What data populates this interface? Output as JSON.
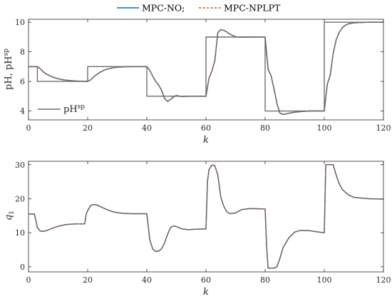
{
  "legend_top": {
    "entries": [
      {
        "label": "MPC-NO;",
        "color": "#0072BD",
        "style": "solid"
      },
      {
        "label": "MPC-NPLPT",
        "color": "#D95319",
        "style": "dashed"
      }
    ]
  },
  "chart_data": [
    {
      "type": "line",
      "xlabel": "k",
      "ylabel": "pH, pH",
      "ylabel_sup": "sp",
      "xlim": [
        0,
        120
      ],
      "ylim": [
        3.4,
        10.2
      ],
      "xticks": [
        0,
        20,
        40,
        60,
        80,
        100,
        120
      ],
      "yticks": [
        4,
        6,
        8,
        10
      ],
      "legend": {
        "label": "pH",
        "label_sup": "sp",
        "placement": "bottom-left"
      },
      "setpoint": {
        "name": "pH",
        "color": "#6e6e6e",
        "x": [
          0,
          3,
          3,
          20,
          20,
          40,
          40,
          60,
          60,
          80,
          80,
          100,
          100,
          120
        ],
        "y": [
          7,
          7,
          6,
          6,
          7,
          7,
          5,
          5,
          9,
          9,
          4,
          4,
          10,
          10
        ]
      },
      "series": [
        {
          "name": "MPC-NO",
          "x": [
            0,
            1,
            2,
            3,
            4,
            5,
            6,
            7,
            8,
            10,
            12,
            14,
            16,
            18,
            20,
            21,
            22,
            23,
            24,
            26,
            28,
            30,
            32,
            35,
            40,
            41,
            42,
            43,
            44,
            45,
            46,
            47,
            48,
            49,
            50,
            51,
            52,
            54,
            56,
            58,
            60,
            61,
            62,
            63,
            64,
            65,
            66,
            67,
            68,
            70,
            72,
            75,
            80,
            81,
            82,
            83,
            84,
            85,
            86,
            87,
            88,
            90,
            92,
            95,
            100,
            101,
            102,
            103,
            104,
            105,
            106,
            107,
            108,
            110,
            115,
            120
          ],
          "y": [
            7,
            7,
            7,
            7.0,
            6.85,
            6.65,
            6.5,
            6.4,
            6.3,
            6.18,
            6.1,
            6.06,
            6.03,
            6.01,
            6.0,
            6.1,
            6.3,
            6.45,
            6.6,
            6.8,
            6.9,
            6.96,
            6.98,
            7.0,
            7.0,
            6.75,
            6.35,
            6.0,
            5.75,
            5.4,
            4.85,
            4.65,
            4.78,
            4.95,
            5.05,
            5.0,
            4.98,
            5.0,
            5.0,
            5.0,
            5.0,
            6.2,
            6.7,
            7.4,
            9.3,
            9.5,
            9.45,
            9.35,
            9.2,
            9.02,
            8.98,
            9.0,
            9.0,
            6.8,
            6.4,
            5.5,
            4.5,
            3.85,
            3.78,
            3.8,
            3.85,
            3.92,
            3.96,
            4.0,
            4.0,
            5.8,
            6.4,
            7.9,
            8.8,
            9.3,
            9.6,
            9.78,
            9.88,
            9.96,
            10.0,
            10.0
          ]
        },
        {
          "name": "MPC-NPLPT",
          "x": [
            0,
            1,
            2,
            3,
            4,
            5,
            6,
            7,
            8,
            10,
            12,
            14,
            16,
            18,
            20,
            21,
            22,
            23,
            24,
            26,
            28,
            30,
            32,
            35,
            40,
            41,
            42,
            43,
            44,
            45,
            46,
            47,
            48,
            49,
            50,
            51,
            52,
            54,
            56,
            58,
            60,
            61,
            62,
            63,
            64,
            65,
            66,
            67,
            68,
            70,
            72,
            75,
            80,
            81,
            82,
            83,
            84,
            85,
            86,
            87,
            88,
            90,
            92,
            95,
            100,
            101,
            102,
            103,
            104,
            105,
            106,
            107,
            108,
            110,
            115,
            120
          ],
          "y": [
            7,
            7,
            7,
            7.0,
            6.85,
            6.65,
            6.5,
            6.4,
            6.3,
            6.18,
            6.1,
            6.06,
            6.03,
            6.01,
            6.0,
            6.1,
            6.3,
            6.45,
            6.6,
            6.8,
            6.9,
            6.96,
            6.98,
            7.0,
            7.0,
            6.75,
            6.35,
            6.0,
            5.75,
            5.4,
            4.85,
            4.65,
            4.78,
            4.95,
            5.05,
            5.0,
            4.98,
            5.0,
            5.0,
            5.0,
            5.0,
            6.2,
            6.7,
            7.4,
            9.3,
            9.5,
            9.45,
            9.35,
            9.2,
            9.02,
            8.98,
            9.0,
            9.0,
            6.8,
            6.4,
            5.5,
            4.5,
            3.85,
            3.78,
            3.8,
            3.85,
            3.92,
            3.96,
            4.0,
            4.0,
            5.8,
            6.4,
            7.9,
            8.8,
            9.3,
            9.6,
            9.78,
            9.88,
            9.96,
            10.0,
            10.0
          ]
        }
      ]
    },
    {
      "type": "line",
      "xlabel": "k",
      "ylabel": "q",
      "ylabel_sub": "1",
      "xlim": [
        0,
        120
      ],
      "ylim": [
        -1.5,
        31
      ],
      "xticks": [
        0,
        20,
        40,
        60,
        80,
        100,
        120
      ],
      "yticks": [
        0,
        10,
        20,
        30
      ],
      "series": [
        {
          "name": "MPC-NO",
          "x": [
            0,
            1,
            2,
            3,
            4,
            5,
            6,
            8,
            10,
            12,
            14,
            16,
            18,
            19,
            19.5,
            20,
            21,
            22,
            23,
            24,
            26,
            28,
            30,
            32,
            35,
            39,
            40,
            41,
            42,
            43,
            44,
            45,
            46,
            47,
            48,
            49,
            50,
            52,
            54,
            56,
            58,
            59,
            60,
            60.5,
            61,
            62,
            63,
            64,
            65,
            66,
            67,
            68,
            70,
            72,
            75,
            79,
            80,
            80.5,
            81,
            82,
            83,
            84,
            85,
            86,
            88,
            90,
            92,
            95,
            99,
            100,
            100.5,
            101,
            102,
            103,
            104,
            105,
            106,
            108,
            110,
            115,
            120
          ],
          "y": [
            15.5,
            15.5,
            15.5,
            11.5,
            10.5,
            10.4,
            10.6,
            11.3,
            11.9,
            12.3,
            12.5,
            12.6,
            12.6,
            12.6,
            15.5,
            16.5,
            18.0,
            18.3,
            18.2,
            17.8,
            17.0,
            16.3,
            15.9,
            15.7,
            15.6,
            15.6,
            15.6,
            8.0,
            5.2,
            4.5,
            4.6,
            5.3,
            7.0,
            9.5,
            11.5,
            12.0,
            11.8,
            11.1,
            10.9,
            11.0,
            11.1,
            11.1,
            11.1,
            25.0,
            28.5,
            29.9,
            29.7,
            27.0,
            20.5,
            17.8,
            16.2,
            15.6,
            15.8,
            16.8,
            17.1,
            17.0,
            17.0,
            6.0,
            -0.4,
            -0.4,
            -0.4,
            0.0,
            2.5,
            5.5,
            8.5,
            10.2,
            10.7,
            10.6,
            10.1,
            10.0,
            30.0,
            30.0,
            30.0,
            30.0,
            27.0,
            24.5,
            22.8,
            21.2,
            20.4,
            20.0,
            19.9
          ]
        },
        {
          "name": "MPC-NPLPT",
          "x": [
            0,
            1,
            2,
            3,
            4,
            5,
            6,
            8,
            10,
            12,
            14,
            16,
            18,
            19,
            19.5,
            20,
            21,
            22,
            23,
            24,
            26,
            28,
            30,
            32,
            35,
            39,
            40,
            41,
            42,
            43,
            44,
            45,
            46,
            47,
            48,
            49,
            50,
            52,
            54,
            56,
            58,
            59,
            60,
            60.5,
            61,
            62,
            63,
            64,
            65,
            66,
            67,
            68,
            70,
            72,
            75,
            79,
            80,
            80.5,
            81,
            82,
            83,
            84,
            85,
            86,
            88,
            90,
            92,
            95,
            99,
            100,
            100.5,
            101,
            102,
            103,
            104,
            105,
            106,
            108,
            110,
            115,
            120
          ],
          "y": [
            15.5,
            15.5,
            15.5,
            11.5,
            10.5,
            10.4,
            10.6,
            11.3,
            11.9,
            12.3,
            12.5,
            12.6,
            12.6,
            12.6,
            15.5,
            16.5,
            18.0,
            18.3,
            18.2,
            17.8,
            17.0,
            16.3,
            15.9,
            15.7,
            15.6,
            15.6,
            15.6,
            8.0,
            5.2,
            4.5,
            4.6,
            5.3,
            7.0,
            9.5,
            11.5,
            12.0,
            11.8,
            11.1,
            10.9,
            11.0,
            11.1,
            11.1,
            11.1,
            25.0,
            28.5,
            29.9,
            29.7,
            27.0,
            20.5,
            17.8,
            16.2,
            15.6,
            15.8,
            16.8,
            17.1,
            17.0,
            17.0,
            6.0,
            -0.4,
            -0.4,
            -0.4,
            0.0,
            2.5,
            5.5,
            8.5,
            10.2,
            10.7,
            10.6,
            10.1,
            10.0,
            30.0,
            30.0,
            30.0,
            30.0,
            27.0,
            24.5,
            22.8,
            21.2,
            20.4,
            20.0,
            19.9
          ]
        }
      ]
    }
  ]
}
